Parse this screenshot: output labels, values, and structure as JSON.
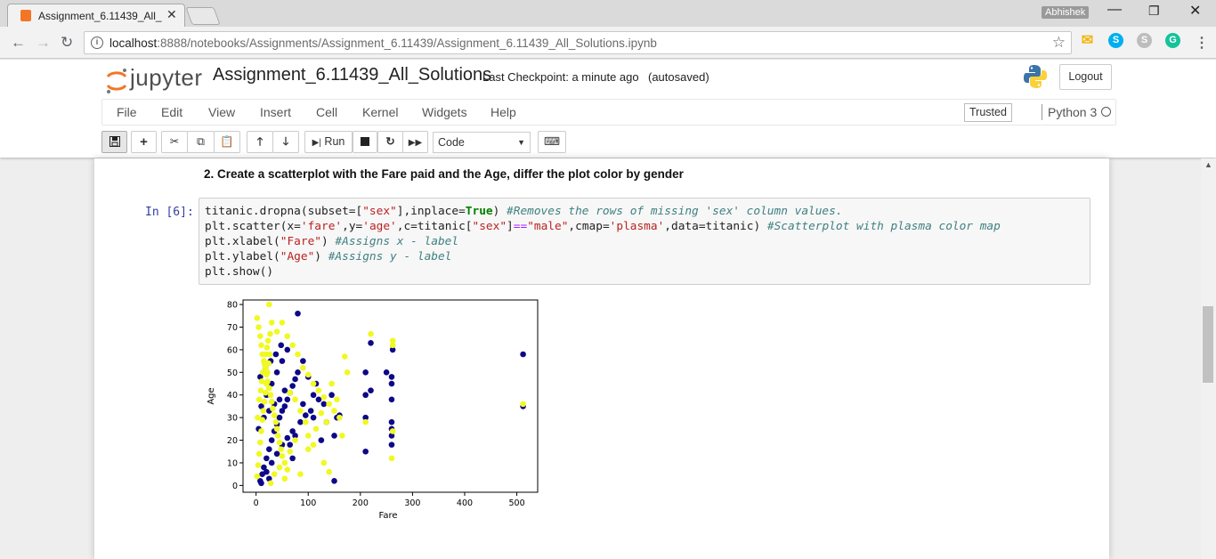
{
  "browser": {
    "tab_title": "Assignment_6.11439_All_",
    "profile_name": "Abhishek",
    "url_host": "localhost",
    "url_path": ":8888/notebooks/Assignments/Assignment_6.11439/Assignment_6.11439_All_Solutions.ipynb",
    "extensions": [
      "gmail-icon",
      "skype-icon",
      "skype-alt-icon",
      "grammarly-icon"
    ],
    "colors": {
      "skype": "#00aff0",
      "grammarly": "#15c39a",
      "gmail": "#f4b400"
    }
  },
  "jupyter": {
    "logo_text": "jupyter",
    "notebook_name": "Assignment_6.11439_All_Solutions",
    "checkpoint": "Last Checkpoint: a minute ago",
    "autosave": "(autosaved)",
    "logout_label": "Logout",
    "menu": [
      "File",
      "Edit",
      "View",
      "Insert",
      "Cell",
      "Kernel",
      "Widgets",
      "Help"
    ],
    "trusted_label": "Trusted",
    "kernel_name": "Python 3",
    "toolbar": {
      "run_label": "Run",
      "cell_type": "Code"
    },
    "colors": {
      "logo_orange": "#f37626",
      "prompt_blue": "#303f9f"
    }
  },
  "cells": {
    "markdown_heading": "2. Create a scatterplot with the Fare paid and the Age, differ the plot color by gender",
    "code_prompt": "In [6]:"
  },
  "chart_data": {
    "type": "scatter",
    "xlabel": "Fare",
    "ylabel": "Age",
    "xlim": [
      -25,
      540
    ],
    "ylim": [
      -3,
      82
    ],
    "xticks": [
      0,
      100,
      200,
      300,
      400,
      500
    ],
    "yticks": [
      0,
      10,
      20,
      30,
      40,
      50,
      60,
      70,
      80
    ],
    "colormap": "plasma",
    "series": [
      {
        "color": "#0d0887",
        "points": [
          [
            8,
            2
          ],
          [
            12,
            5
          ],
          [
            15,
            8
          ],
          [
            20,
            12
          ],
          [
            25,
            16
          ],
          [
            30,
            20
          ],
          [
            35,
            24
          ],
          [
            40,
            27
          ],
          [
            45,
            30
          ],
          [
            50,
            33
          ],
          [
            55,
            35
          ],
          [
            60,
            38
          ],
          [
            65,
            41
          ],
          [
            70,
            44
          ],
          [
            75,
            47
          ],
          [
            80,
            50
          ],
          [
            10,
            35
          ],
          [
            20,
            40
          ],
          [
            30,
            45
          ],
          [
            40,
            50
          ],
          [
            50,
            55
          ],
          [
            60,
            60
          ],
          [
            80,
            76
          ],
          [
            90,
            55
          ],
          [
            100,
            48
          ],
          [
            110,
            40
          ],
          [
            120,
            38
          ],
          [
            130,
            36
          ],
          [
            150,
            22
          ],
          [
            150,
            2
          ],
          [
            155,
            30
          ],
          [
            160,
            31
          ],
          [
            210,
            50
          ],
          [
            210,
            40
          ],
          [
            210,
            30
          ],
          [
            210,
            15
          ],
          [
            220,
            42
          ],
          [
            220,
            63
          ],
          [
            250,
            50
          ],
          [
            260,
            48
          ],
          [
            260,
            45
          ],
          [
            260,
            38
          ],
          [
            260,
            28
          ],
          [
            260,
            25
          ],
          [
            260,
            22
          ],
          [
            260,
            18
          ],
          [
            262,
            60
          ],
          [
            512,
            58
          ],
          [
            512,
            35
          ],
          [
            5,
            25
          ],
          [
            15,
            30
          ],
          [
            25,
            33
          ],
          [
            35,
            36
          ],
          [
            45,
            38
          ],
          [
            55,
            42
          ],
          [
            65,
            18
          ],
          [
            75,
            22
          ],
          [
            85,
            28
          ],
          [
            95,
            31
          ],
          [
            105,
            33
          ],
          [
            115,
            45
          ],
          [
            125,
            20
          ],
          [
            135,
            28
          ],
          [
            145,
            40
          ],
          [
            8,
            48
          ],
          [
            18,
            52
          ],
          [
            28,
            55
          ],
          [
            38,
            58
          ],
          [
            48,
            62
          ],
          [
            20,
            6
          ],
          [
            10,
            1
          ],
          [
            25,
            3
          ],
          [
            30,
            10
          ],
          [
            40,
            14
          ],
          [
            50,
            18
          ],
          [
            60,
            21
          ],
          [
            70,
            24
          ],
          [
            90,
            36
          ],
          [
            110,
            30
          ],
          [
            70,
            12
          ]
        ]
      },
      {
        "color": "#f0f921",
        "points": [
          [
            2,
            74
          ],
          [
            5,
            70
          ],
          [
            8,
            66
          ],
          [
            10,
            62
          ],
          [
            12,
            58
          ],
          [
            15,
            55
          ],
          [
            18,
            52
          ],
          [
            20,
            49
          ],
          [
            22,
            46
          ],
          [
            25,
            43
          ],
          [
            28,
            40
          ],
          [
            30,
            37
          ],
          [
            32,
            34
          ],
          [
            35,
            31
          ],
          [
            38,
            28
          ],
          [
            40,
            25
          ],
          [
            42,
            22
          ],
          [
            45,
            19
          ],
          [
            48,
            16
          ],
          [
            50,
            13
          ],
          [
            55,
            10
          ],
          [
            60,
            7
          ],
          [
            25,
            80
          ],
          [
            30,
            72
          ],
          [
            40,
            68
          ],
          [
            50,
            72
          ],
          [
            60,
            66
          ],
          [
            70,
            62
          ],
          [
            80,
            58
          ],
          [
            90,
            52
          ],
          [
            100,
            49
          ],
          [
            110,
            45
          ],
          [
            120,
            42
          ],
          [
            130,
            39
          ],
          [
            140,
            36
          ],
          [
            150,
            33
          ],
          [
            160,
            30
          ],
          [
            170,
            57
          ],
          [
            130,
            10
          ],
          [
            140,
            6
          ],
          [
            110,
            18
          ],
          [
            100,
            22
          ],
          [
            95,
            28
          ],
          [
            85,
            33
          ],
          [
            75,
            38
          ],
          [
            65,
            41
          ],
          [
            210,
            28
          ],
          [
            220,
            67
          ],
          [
            262,
            64
          ],
          [
            262,
            62
          ],
          [
            260,
            12
          ],
          [
            262,
            24
          ],
          [
            512,
            36
          ],
          [
            2,
            4
          ],
          [
            4,
            9
          ],
          [
            6,
            14
          ],
          [
            8,
            19
          ],
          [
            10,
            24
          ],
          [
            12,
            29
          ],
          [
            14,
            33
          ],
          [
            16,
            37
          ],
          [
            18,
            41
          ],
          [
            20,
            45
          ],
          [
            22,
            50
          ],
          [
            24,
            54
          ],
          [
            26,
            58
          ],
          [
            28,
            1
          ],
          [
            35,
            5
          ],
          [
            45,
            8
          ],
          [
            55,
            3
          ],
          [
            65,
            15
          ],
          [
            75,
            20
          ],
          [
            85,
            5
          ],
          [
            100,
            16
          ],
          [
            115,
            25
          ],
          [
            125,
            32
          ],
          [
            135,
            28
          ],
          [
            145,
            45
          ],
          [
            155,
            38
          ],
          [
            165,
            22
          ],
          [
            175,
            50
          ],
          [
            3,
            30
          ],
          [
            6,
            38
          ],
          [
            9,
            42
          ],
          [
            11,
            46
          ],
          [
            13,
            50
          ],
          [
            16,
            54
          ],
          [
            19,
            58
          ],
          [
            21,
            61
          ],
          [
            23,
            64
          ],
          [
            27,
            67
          ]
        ]
      }
    ]
  }
}
